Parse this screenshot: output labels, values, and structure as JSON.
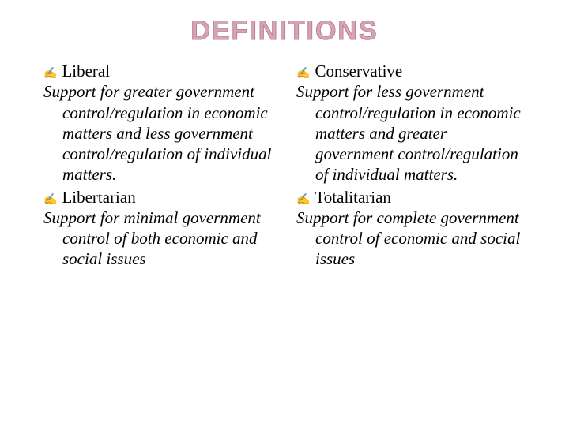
{
  "title": "DEFINITIONS",
  "title_color": "#d4a5b5",
  "title_stroke": "#c08090",
  "title_fontsize": 34,
  "body_fontsize": 21,
  "bullet_glyph": "✍",
  "left": {
    "term1": "Liberal",
    "def1": "Support for greater government control/regulation in economic matters and less government control/regulation of individual matters.",
    "term2": "Libertarian",
    "def2": "Support for minimal government control of both economic and social issues"
  },
  "right": {
    "term1": "Conservative",
    "def1": "Support for less government control/regulation in economic matters and greater government control/regulation of individual matters.",
    "term2": "Totalitarian",
    "def2": "Support for complete government control of economic and social issues"
  }
}
